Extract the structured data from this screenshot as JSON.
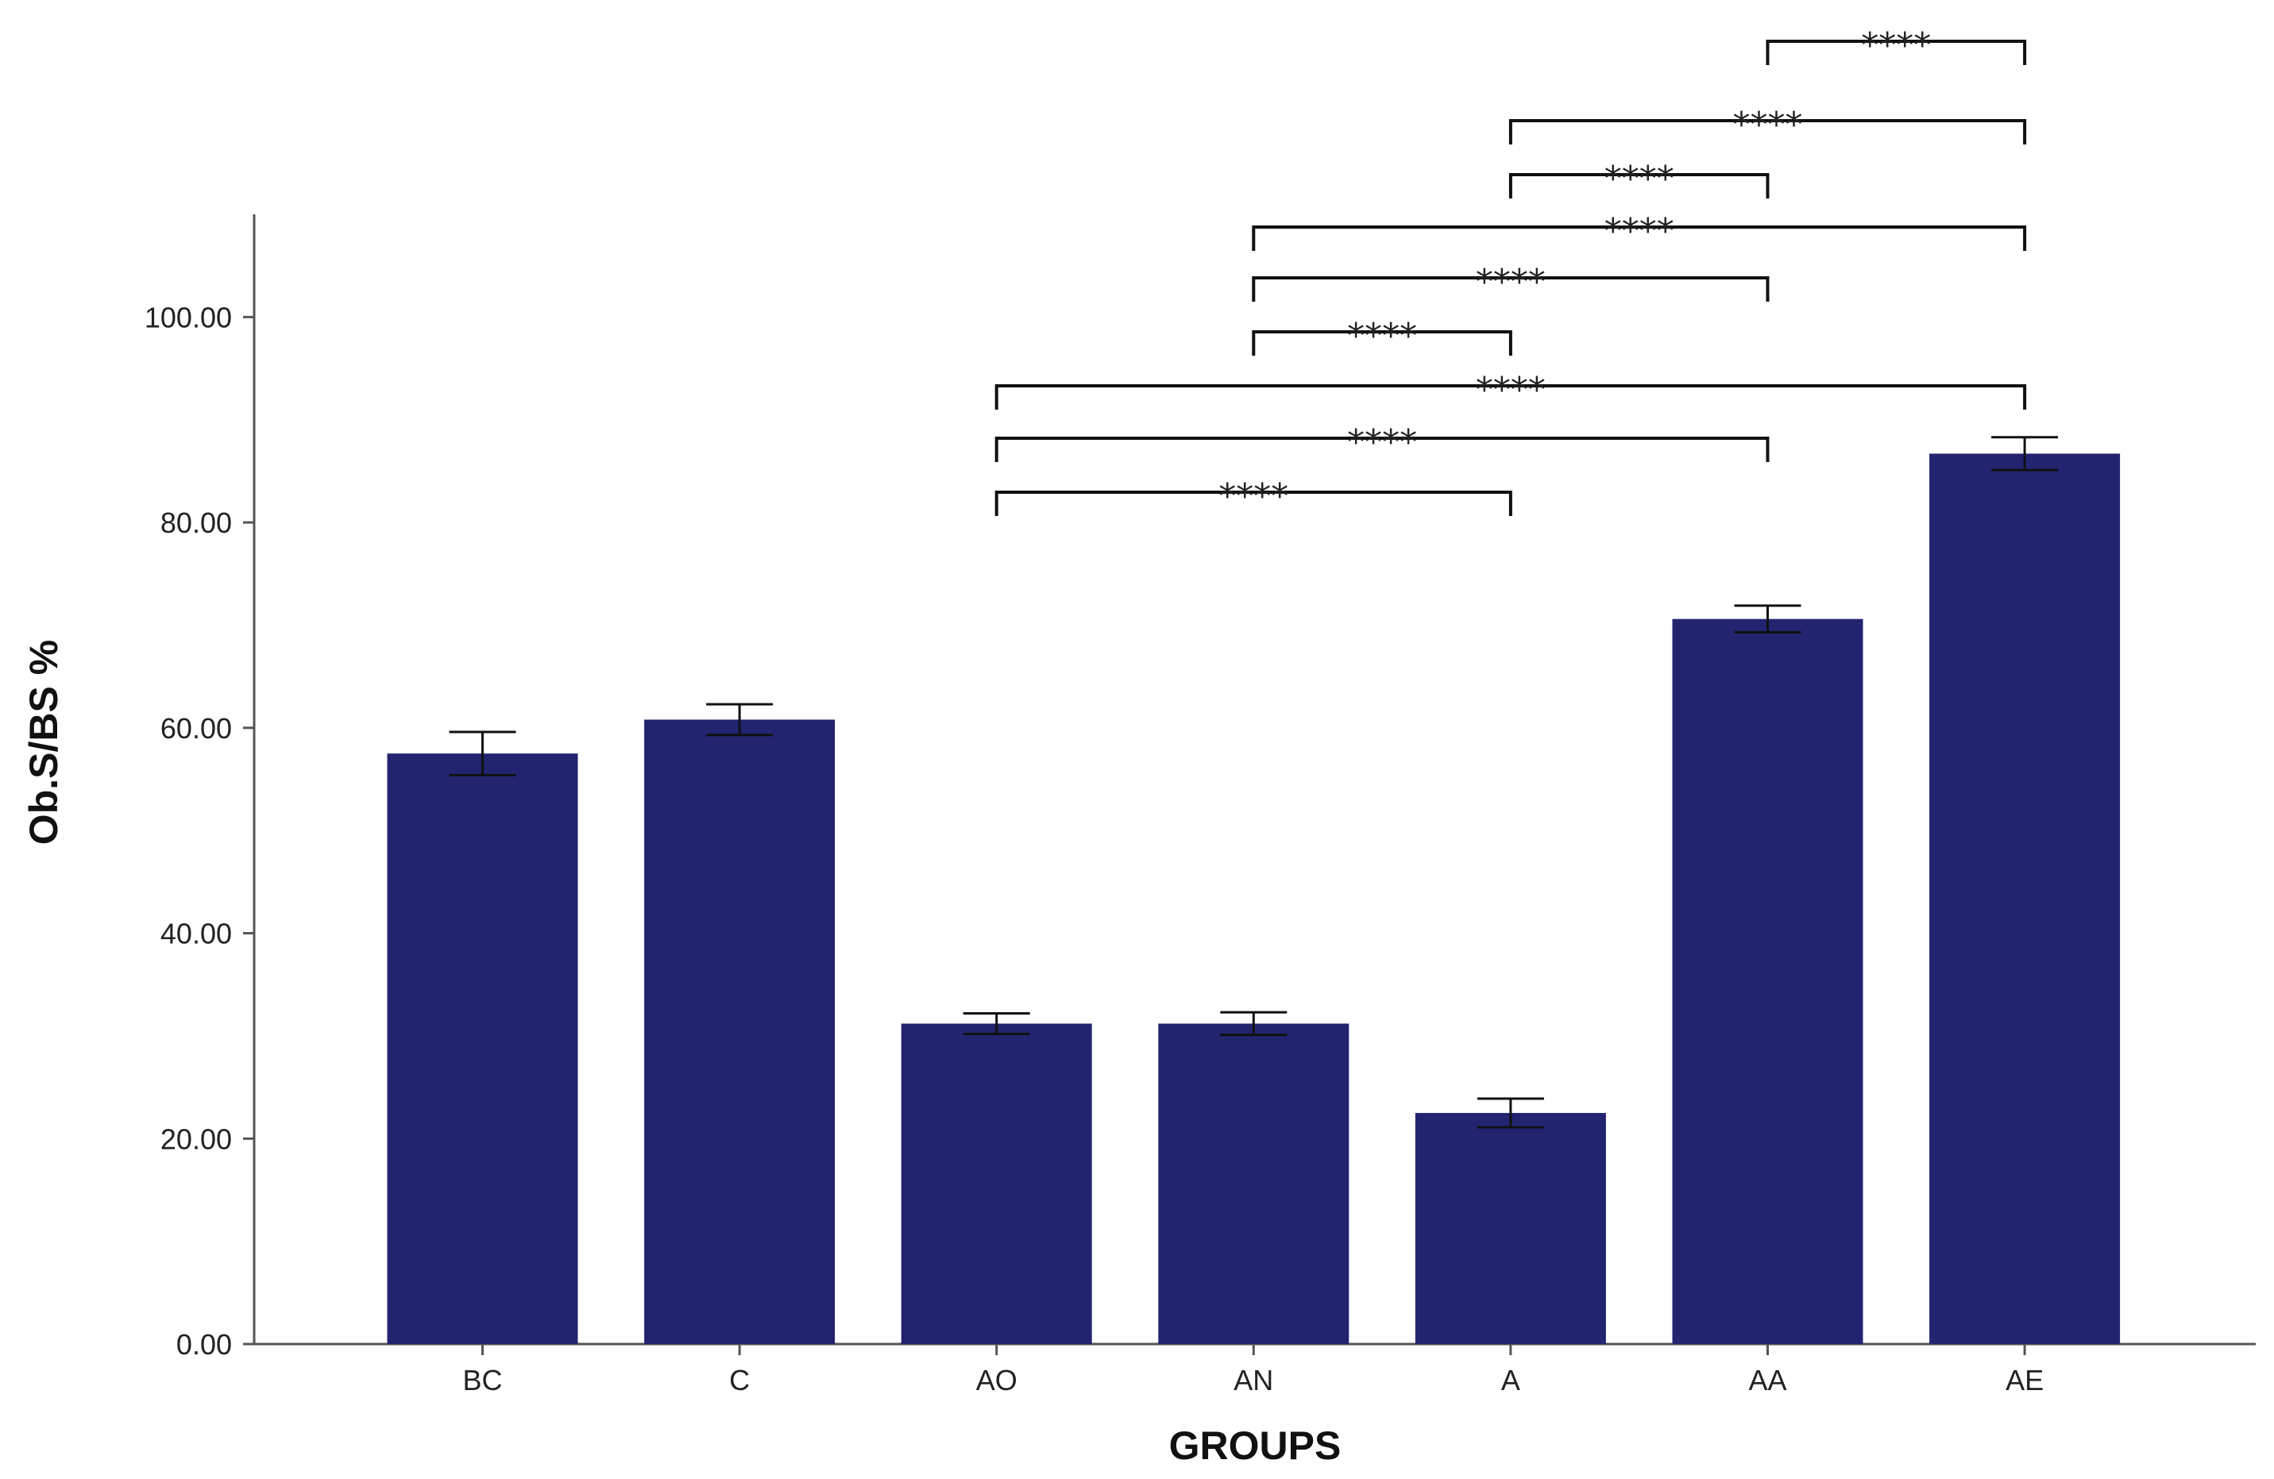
{
  "chart_data": {
    "type": "bar",
    "xlabel": "GROUPS",
    "ylabel": "Ob.S/BS %",
    "categories": [
      "BC",
      "C",
      "AO",
      "AN",
      "A",
      "AA",
      "AE"
    ],
    "values": [
      57.5,
      60.8,
      31.2,
      31.2,
      22.5,
      70.6,
      86.7
    ],
    "errors": [
      2.1,
      1.5,
      1.0,
      1.1,
      1.4,
      1.3,
      1.6
    ],
    "ylim": [
      0,
      110
    ],
    "yticks": [
      "0.00",
      "20.00",
      "40.00",
      "60.00",
      "80.00",
      "100.00"
    ],
    "ytick_values": [
      0,
      20,
      40,
      60,
      80,
      100
    ],
    "bar_color": "#222470",
    "grid": false,
    "significance": [
      {
        "from": "AA",
        "to": "AE",
        "label": "****"
      },
      {
        "from": "A",
        "to": "AE",
        "label": "****"
      },
      {
        "from": "A",
        "to": "AA",
        "label": "****"
      },
      {
        "from": "AN",
        "to": "AE",
        "label": "****"
      },
      {
        "from": "AN",
        "to": "AA",
        "label": "****"
      },
      {
        "from": "AN",
        "to": "A",
        "label": "****"
      },
      {
        "from": "AO",
        "to": "AE",
        "label": "****"
      },
      {
        "from": "AO",
        "to": "AA",
        "label": "****"
      },
      {
        "from": "AO",
        "to": "A",
        "label": "****"
      }
    ]
  }
}
